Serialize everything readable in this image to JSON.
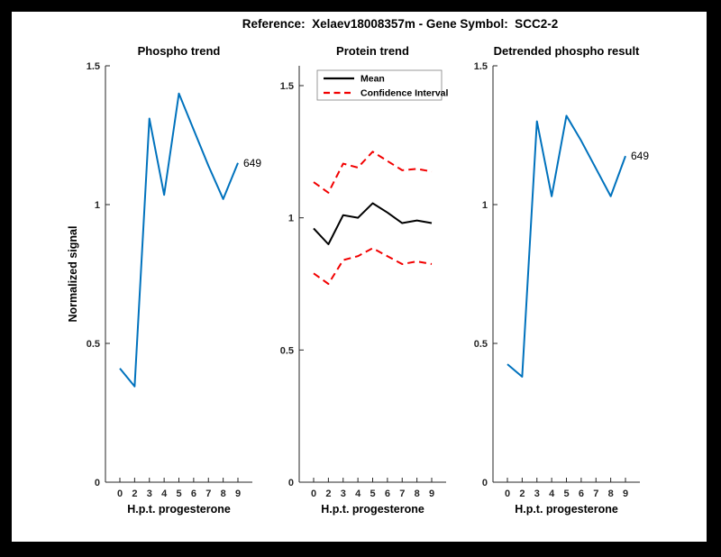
{
  "figure": {
    "title": "Reference:  Xelaev18008357m - Gene Symbol:  SCC2-2",
    "background_color": "#ffffff",
    "frame_color": "#000000",
    "axis_color": "#262626",
    "accent_blue": "#0072BD",
    "accent_red": "#F20000"
  },
  "chart_data": [
    {
      "type": "line",
      "title": "Phospho trend",
      "xlabel": "H.p.t. progesterone",
      "ylabel": "Normalized signal",
      "x_ticklabels": [
        "0",
        "2",
        "3",
        "4",
        "5",
        "6",
        "7",
        "8",
        "9"
      ],
      "y_tick_values": [
        0,
        0.5,
        1,
        1.5
      ],
      "y_tick_labels": [
        "0",
        "0.5",
        "1",
        "1.5"
      ],
      "ylim": [
        0,
        1.5
      ],
      "grid": false,
      "legend": null,
      "series": [
        {
          "name": "phospho-signal",
          "color": "#0072BD",
          "dash": false,
          "values": [
            0.41,
            0.345,
            1.31,
            1.035,
            1.4,
            1.27,
            1.14,
            1.02,
            1.15
          ],
          "end_label": "649"
        }
      ]
    },
    {
      "type": "line",
      "title": "Protein trend",
      "xlabel": "H.p.t. progesterone",
      "ylabel": "",
      "x_ticklabels": [
        "0",
        "2",
        "3",
        "4",
        "5",
        "6",
        "7",
        "8",
        "9"
      ],
      "y_tick_values": [
        0,
        0.5,
        1,
        1.5
      ],
      "y_tick_labels": [
        "0",
        "0.5",
        "1",
        "1.5"
      ],
      "ylim": [
        0,
        1.575
      ],
      "grid": false,
      "legend": {
        "position": "northwest",
        "entries": [
          {
            "label": "Mean",
            "color": "#000000",
            "dash": false
          },
          {
            "label": "Confidence Interval",
            "color": "#F20000",
            "dash": true
          }
        ]
      },
      "series": [
        {
          "name": "mean",
          "color": "#000000",
          "dash": false,
          "values": [
            0.96,
            0.9,
            1.01,
            1.0,
            1.055,
            1.02,
            0.98,
            0.99,
            0.98
          ],
          "end_label": null
        },
        {
          "name": "confidence-interval-upper",
          "color": "#F20000",
          "dash": true,
          "values": [
            1.135,
            1.095,
            1.205,
            1.19,
            1.25,
            1.215,
            1.18,
            1.185,
            1.175
          ],
          "end_label": null
        },
        {
          "name": "confidence-interval-lower",
          "color": "#F20000",
          "dash": true,
          "values": [
            0.79,
            0.75,
            0.84,
            0.855,
            0.885,
            0.855,
            0.825,
            0.835,
            0.825
          ],
          "end_label": null
        }
      ]
    },
    {
      "type": "line",
      "title": "Detrended phospho result",
      "xlabel": "H.p.t. progesterone",
      "ylabel": "",
      "x_ticklabels": [
        "0",
        "2",
        "3",
        "4",
        "5",
        "6",
        "7",
        "8",
        "9"
      ],
      "y_tick_values": [
        0,
        0.5,
        1,
        1.5
      ],
      "y_tick_labels": [
        "0",
        "0.5",
        "1",
        "1.5"
      ],
      "ylim": [
        0,
        1.5
      ],
      "grid": false,
      "legend": null,
      "series": [
        {
          "name": "detrended-phospho-signal",
          "color": "#0072BD",
          "dash": false,
          "values": [
            0.425,
            0.38,
            1.3,
            1.03,
            1.32,
            1.23,
            1.13,
            1.03,
            1.175
          ],
          "end_label": "649"
        }
      ]
    }
  ]
}
